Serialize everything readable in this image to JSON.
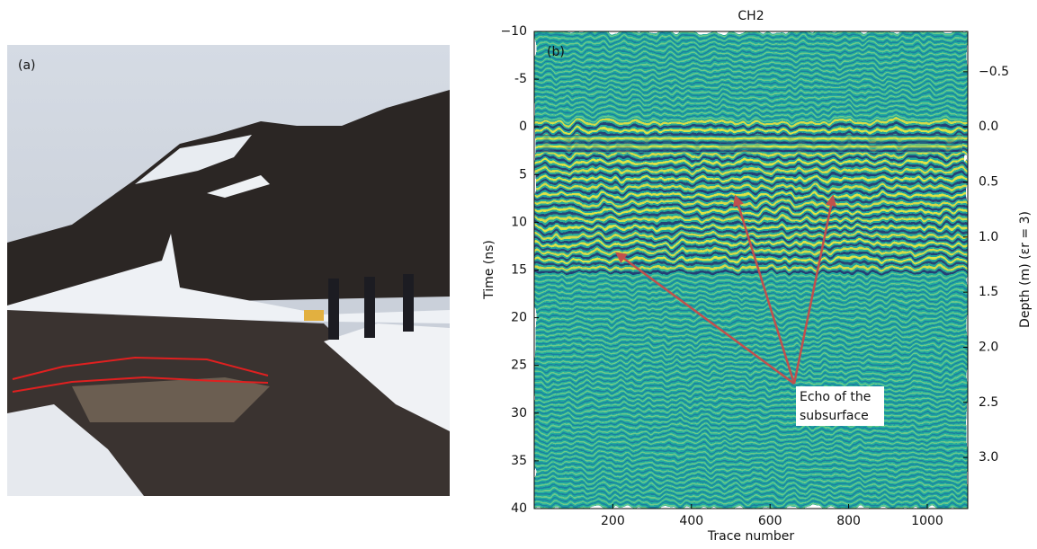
{
  "panel_a": {
    "label": "(a)"
  },
  "panel_b": {
    "label": "(b)",
    "title": "CH2",
    "xlabel": "Trace number",
    "ylabel": "Time (ns)",
    "y2label": "Depth (m) (εr = 3)",
    "xlim": [
      0,
      1103
    ],
    "xticks": [
      200,
      400,
      600,
      800,
      1000
    ],
    "ylim": [
      -10,
      40
    ],
    "yticks": [
      {
        "value": -10,
        "label": "−10"
      },
      -5,
      0,
      5,
      10,
      15,
      20,
      25,
      30,
      35,
      40
    ],
    "y2lim": [
      -0.866,
      3.464
    ],
    "y2ticks": [
      {
        "value": -0.5,
        "label": "−0.5"
      },
      {
        "value": 0,
        "label": "0.0"
      },
      0.5,
      {
        "value": 1,
        "label": "1.0"
      },
      1.5,
      {
        "value": 2,
        "label": "2.0"
      },
      2.5,
      {
        "value": 3,
        "label": "3.0"
      }
    ],
    "annotation": [
      "Echo of the",
      "subsurface"
    ]
  }
}
